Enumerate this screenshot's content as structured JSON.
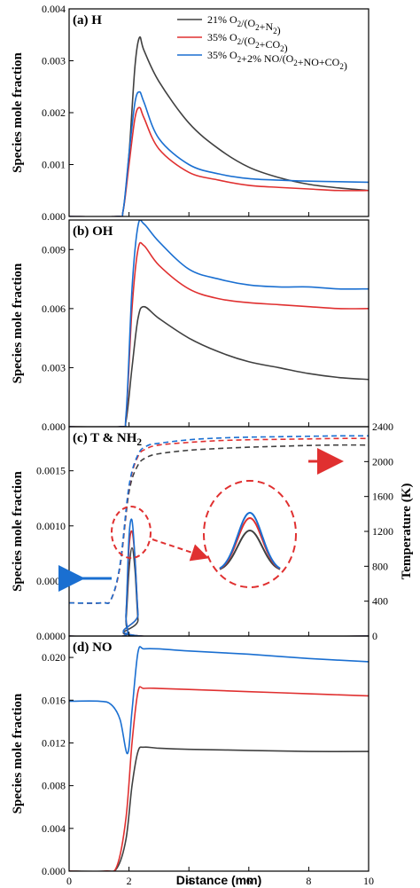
{
  "chart_data": [
    {
      "panel": "a",
      "type": "line",
      "label": "(a) H",
      "ylabel": "Species mole fraction",
      "ylim": [
        0,
        0.004
      ],
      "yticks": [
        "0.000",
        "0.001",
        "0.002",
        "0.003",
        "0.004"
      ],
      "xlim": [
        0,
        10
      ],
      "legend": {
        "position": "top-right",
        "entries": [
          "21% O2/(O2+N2)",
          "35% O2/(O2+CO2)",
          "35% O2+2% NO/(O2+NO+CO2)"
        ]
      },
      "series": [
        {
          "name": "21% O2/(O2+N2)",
          "color": "#404040",
          "x": [
            0,
            1.6,
            1.8,
            2.0,
            2.2,
            2.35,
            2.5,
            3,
            4,
            5,
            6,
            7,
            8,
            9,
            10
          ],
          "y": [
            0,
            0,
            0.0001,
            0.0012,
            0.0029,
            0.00345,
            0.0032,
            0.0026,
            0.0018,
            0.0013,
            0.00095,
            0.00075,
            0.00062,
            0.00055,
            0.0005
          ]
        },
        {
          "name": "35% O2/(O2+CO2)",
          "color": "#e03030",
          "x": [
            0,
            1.6,
            1.8,
            2.0,
            2.2,
            2.35,
            2.5,
            3,
            4,
            5,
            6,
            7,
            8,
            9,
            10
          ],
          "y": [
            0,
            0,
            0.0001,
            0.001,
            0.0019,
            0.0021,
            0.0019,
            0.0013,
            0.00085,
            0.0007,
            0.0006,
            0.00056,
            0.00053,
            0.0005,
            0.0005
          ]
        },
        {
          "name": "35% O2+2% NO/(O2+NO+CO2)",
          "color": "#1a6fd1",
          "x": [
            0,
            1.6,
            1.8,
            2.0,
            2.2,
            2.35,
            2.5,
            3,
            4,
            5,
            6,
            7,
            8,
            9,
            10
          ],
          "y": [
            0,
            0,
            0.0001,
            0.0012,
            0.0022,
            0.0024,
            0.0022,
            0.0015,
            0.001,
            0.00082,
            0.00073,
            0.0007,
            0.00068,
            0.00067,
            0.00066
          ]
        }
      ]
    },
    {
      "panel": "b",
      "type": "line",
      "label": "(b) OH",
      "ylabel": "Species mole fraction",
      "ylim": [
        0,
        0.0105
      ],
      "yticks": [
        "0.000",
        "0.003",
        "0.006",
        "0.009"
      ],
      "xlim": [
        0,
        10
      ],
      "series": [
        {
          "name": "21% O2/(O2+N2)",
          "color": "#404040",
          "x": [
            0,
            1.7,
            1.9,
            2.1,
            2.3,
            2.5,
            3,
            4,
            5,
            6,
            7,
            8,
            9,
            10
          ],
          "y": [
            0,
            0,
            0.0003,
            0.003,
            0.0055,
            0.0061,
            0.0055,
            0.0045,
            0.0038,
            0.0033,
            0.003,
            0.0027,
            0.0025,
            0.0024
          ]
        },
        {
          "name": "35% O2/(O2+CO2)",
          "color": "#e03030",
          "x": [
            0,
            1.7,
            1.9,
            2.1,
            2.3,
            2.5,
            3,
            4,
            5,
            6,
            7,
            8,
            9,
            10
          ],
          "y": [
            0,
            0,
            0.0005,
            0.006,
            0.009,
            0.0092,
            0.0082,
            0.007,
            0.0065,
            0.0063,
            0.0062,
            0.0061,
            0.006,
            0.006
          ]
        },
        {
          "name": "35% O2+2% NO/(O2+NO+CO2)",
          "color": "#1a6fd1",
          "x": [
            0,
            1.7,
            1.9,
            2.1,
            2.3,
            2.5,
            3,
            4,
            5,
            6,
            7,
            8,
            9,
            10
          ],
          "y": [
            0,
            0,
            0.0006,
            0.007,
            0.0102,
            0.0103,
            0.0094,
            0.008,
            0.0075,
            0.0072,
            0.0071,
            0.0071,
            0.007,
            0.007
          ]
        }
      ]
    },
    {
      "panel": "c",
      "type": "line",
      "label": "(c) T & NH2",
      "ylabel": "Species mole fraction",
      "ylim": [
        0,
        0.0019
      ],
      "yticks": [
        "0.0000",
        "0.0005",
        "0.0010",
        "0.0015"
      ],
      "y2label": "Temperature (K)",
      "y2lim": [
        0,
        2400
      ],
      "y2ticks": [
        "0",
        "400",
        "800",
        "1200",
        "1600",
        "2000",
        "2400"
      ],
      "xlim": [
        0,
        10
      ],
      "series": [
        {
          "name": "21% O2/(O2+N2)",
          "color": "#404040",
          "axis": "left",
          "x": [
            0,
            1.8,
            1.9,
            2.0,
            2.1,
            2.2,
            2.3,
            2.4,
            10
          ],
          "y": [
            0,
            0,
            0.00015,
            0.0006,
            0.0008,
            0.0006,
            0.00015,
            0,
            0
          ]
        },
        {
          "name": "35% O2/(O2+CO2)",
          "color": "#e03030",
          "axis": "left",
          "x": [
            0,
            1.8,
            1.9,
            2.0,
            2.1,
            2.2,
            2.3,
            2.4,
            10
          ],
          "y": [
            0,
            0,
            0.0002,
            0.0008,
            0.00095,
            0.0007,
            0.0002,
            0,
            0
          ]
        },
        {
          "name": "35% O2+2% NO/(O2+NO+CO2)",
          "color": "#1a6fd1",
          "axis": "left",
          "x": [
            0,
            1.8,
            1.9,
            2.0,
            2.1,
            2.2,
            2.3,
            2.4,
            10
          ],
          "y": [
            0,
            0,
            0.0002,
            0.0009,
            0.00105,
            0.0007,
            0.0002,
            0,
            0
          ]
        },
        {
          "name": "21% O2/(O2+N2) T",
          "color": "#404040",
          "axis": "right",
          "dashed": true,
          "x": [
            0,
            1.1,
            1.4,
            1.7,
            2.0,
            2.3,
            2.6,
            3,
            4,
            5,
            6,
            7,
            8,
            9,
            10
          ],
          "y": [
            380,
            380,
            420,
            800,
            1650,
            1960,
            2050,
            2090,
            2130,
            2150,
            2165,
            2175,
            2185,
            2190,
            2190
          ]
        },
        {
          "name": "35% O2/(O2+CO2) T",
          "color": "#e03030",
          "axis": "right",
          "dashed": true,
          "x": [
            0,
            1.1,
            1.4,
            1.7,
            2.0,
            2.3,
            2.6,
            3,
            4,
            5,
            6,
            7,
            8,
            9,
            10
          ],
          "y": [
            380,
            380,
            420,
            800,
            1700,
            2060,
            2150,
            2190,
            2220,
            2240,
            2250,
            2255,
            2260,
            2265,
            2265
          ]
        },
        {
          "name": "35% O2+2% NO/(O2+NO+CO2) T",
          "color": "#1a6fd1",
          "axis": "right",
          "dashed": true,
          "x": [
            0,
            1.1,
            1.4,
            1.7,
            2.0,
            2.3,
            2.6,
            3,
            4,
            5,
            6,
            7,
            8,
            9,
            10
          ],
          "y": [
            380,
            380,
            420,
            820,
            1720,
            2080,
            2180,
            2210,
            2250,
            2270,
            2280,
            2285,
            2290,
            2295,
            2295
          ]
        }
      ]
    },
    {
      "panel": "d",
      "type": "line",
      "label": "(d) NO",
      "ylabel": "Species mole fraction",
      "ylim": [
        0,
        0.022
      ],
      "yticks": [
        "0.000",
        "0.004",
        "0.008",
        "0.012",
        "0.016",
        "0.020"
      ],
      "xlabel": "Distance (mm)",
      "xticks": [
        "0",
        "2",
        "4",
        "6",
        "8",
        "10"
      ],
      "xlim": [
        0,
        10
      ],
      "series": [
        {
          "name": "21% O2/(O2+N2)",
          "color": "#404040",
          "x": [
            0,
            1.2,
            1.6,
            1.9,
            2.1,
            2.3,
            2.5,
            3,
            4,
            6,
            8,
            10
          ],
          "y": [
            0,
            0,
            0.0003,
            0.003,
            0.008,
            0.0112,
            0.0116,
            0.0115,
            0.0114,
            0.0113,
            0.0112,
            0.0112
          ]
        },
        {
          "name": "35% O2/(O2+CO2)",
          "color": "#e03030",
          "x": [
            0,
            1.2,
            1.6,
            1.9,
            2.1,
            2.3,
            2.5,
            3,
            4,
            6,
            8,
            10
          ],
          "y": [
            0,
            0,
            0.0005,
            0.005,
            0.012,
            0.0168,
            0.0171,
            0.0171,
            0.017,
            0.0168,
            0.0166,
            0.0164
          ]
        },
        {
          "name": "35% O2+2% NO/(O2+NO+CO2)",
          "color": "#1a6fd1",
          "x": [
            0,
            1.0,
            1.4,
            1.7,
            1.95,
            2.1,
            2.3,
            2.5,
            3,
            4,
            6,
            8,
            10
          ],
          "y": [
            0.0159,
            0.0159,
            0.0156,
            0.0142,
            0.011,
            0.015,
            0.0205,
            0.0208,
            0.0208,
            0.0206,
            0.0203,
            0.0199,
            0.0196
          ]
        }
      ]
    }
  ]
}
